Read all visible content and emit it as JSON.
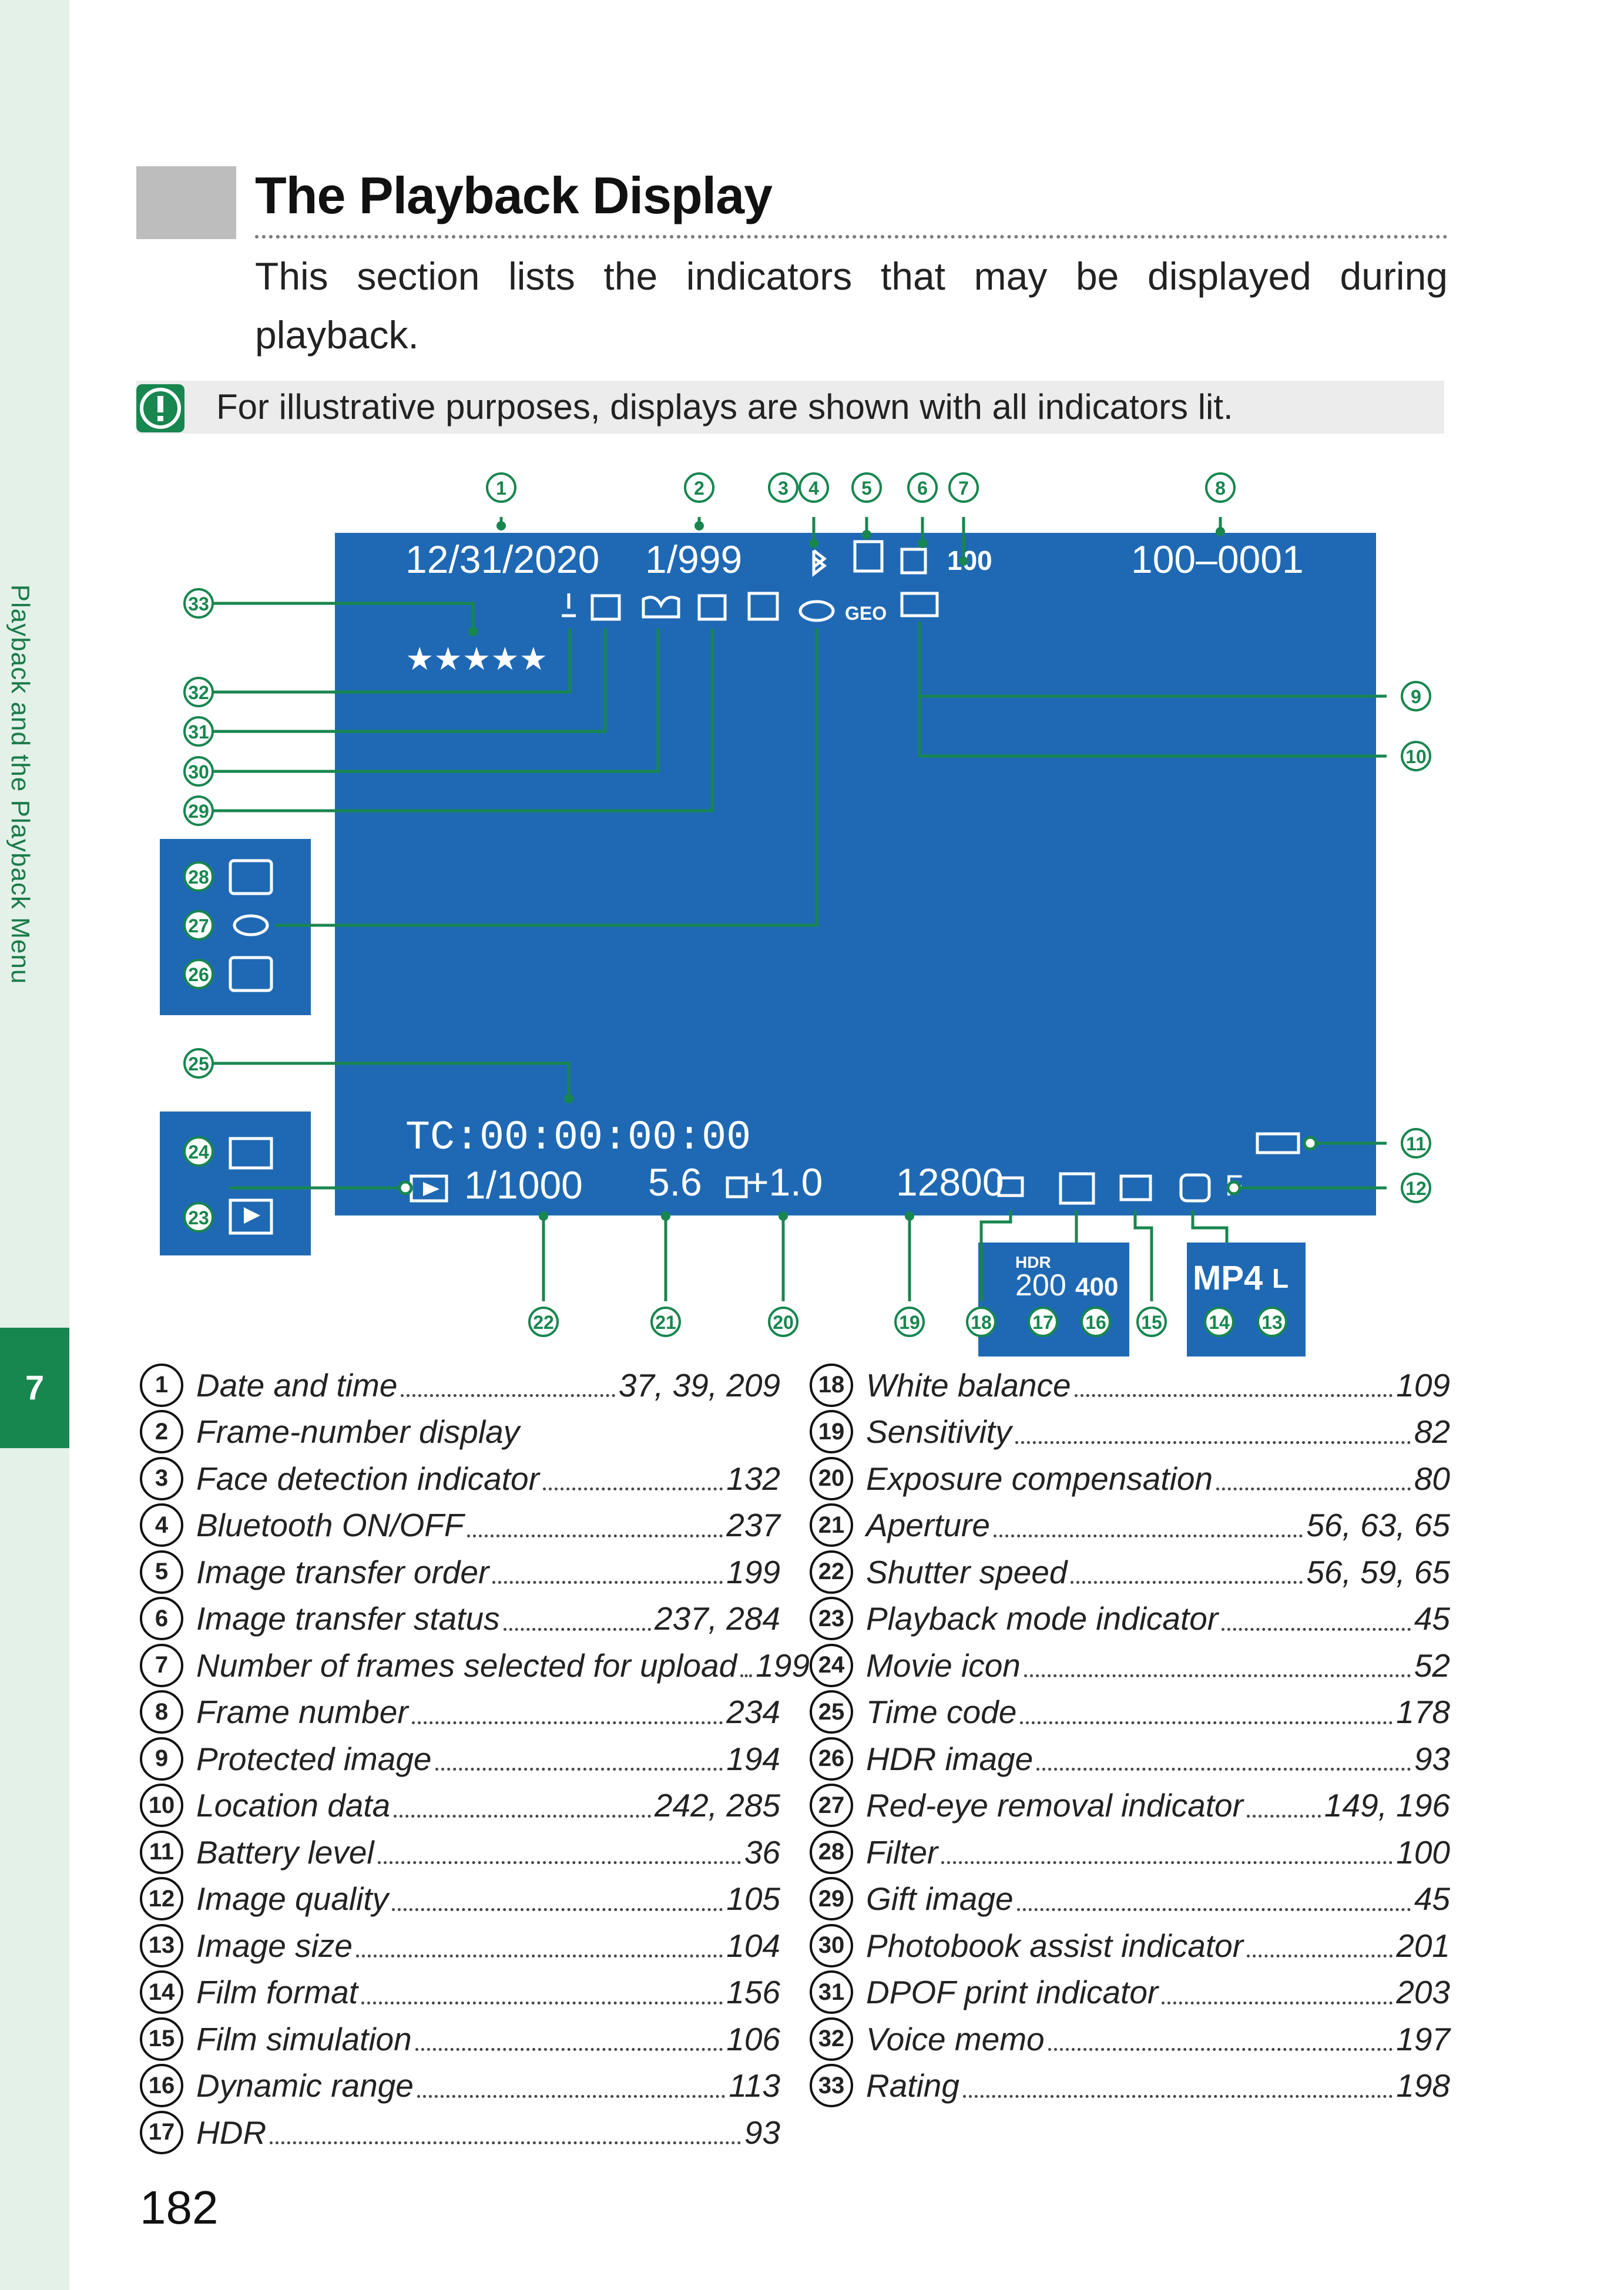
{
  "sidebar": {
    "section_title": "Playback and the Playback Menu",
    "chapter": "7"
  },
  "heading": "The Playback Display",
  "intro": "This section lists the indicators that may be displayed during playback.",
  "note": "For illustrative purposes, displays are shown with all indicators lit.",
  "colors": {
    "screen_blue": "#1f69b4",
    "callout_green": "#18864f",
    "sidebar_bg": "#e3f1e9"
  },
  "screen": {
    "date": "12/31/2020",
    "frame_count": "1/999",
    "upload_count": "100",
    "frame_number": "100–0001",
    "rating": "★★★★★",
    "geo": "GEO",
    "timecode": "TC:00:00:00:00",
    "shutter": "1/1000",
    "aperture": "5.6",
    "exposure": "+1.0",
    "iso": "12800",
    "quality": "F",
    "hdr_label": "HDR",
    "hdr_value": "200",
    "dr_value": "400",
    "format": "MP4",
    "size": "L"
  },
  "callouts": [
    "1",
    "2",
    "3",
    "4",
    "5",
    "6",
    "7",
    "8",
    "9",
    "10",
    "11",
    "12",
    "13",
    "14",
    "15",
    "16",
    "17",
    "18",
    "19",
    "20",
    "21",
    "22",
    "23",
    "24",
    "25",
    "26",
    "27",
    "28",
    "29",
    "30",
    "31",
    "32",
    "33"
  ],
  "list_left": [
    {
      "n": "1",
      "label": "Date and time",
      "page": "37, 39, 209"
    },
    {
      "n": "2",
      "label": "Frame-number display",
      "page": ""
    },
    {
      "n": "3",
      "label": "Face detection indicator",
      "page": "132"
    },
    {
      "n": "4",
      "label": "Bluetooth ON/OFF",
      "page": "237"
    },
    {
      "n": "5",
      "label": "Image transfer order",
      "page": "199"
    },
    {
      "n": "6",
      "label": "Image transfer status",
      "page": "237, 284"
    },
    {
      "n": "7",
      "label": "Number of frames selected for upload",
      "page": "199"
    },
    {
      "n": "8",
      "label": "Frame number",
      "page": "234"
    },
    {
      "n": "9",
      "label": "Protected image",
      "page": "194"
    },
    {
      "n": "10",
      "label": "Location data",
      "page": "242, 285"
    },
    {
      "n": "11",
      "label": "Battery level",
      "page": "36"
    },
    {
      "n": "12",
      "label": "Image quality",
      "page": "105"
    },
    {
      "n": "13",
      "label": "Image size",
      "page": "104"
    },
    {
      "n": "14",
      "label": "Film format",
      "page": "156"
    },
    {
      "n": "15",
      "label": "Film simulation",
      "page": "106"
    },
    {
      "n": "16",
      "label": "Dynamic range",
      "page": "113"
    },
    {
      "n": "17",
      "label": "HDR",
      "page": "93"
    }
  ],
  "list_right": [
    {
      "n": "18",
      "label": "White balance",
      "page": "109"
    },
    {
      "n": "19",
      "label": "Sensitivity",
      "page": "82"
    },
    {
      "n": "20",
      "label": "Exposure compensation",
      "page": "80"
    },
    {
      "n": "21",
      "label": "Aperture",
      "page": "56, 63, 65"
    },
    {
      "n": "22",
      "label": "Shutter speed",
      "page": "56, 59, 65"
    },
    {
      "n": "23",
      "label": "Playback mode indicator",
      "page": "45"
    },
    {
      "n": "24",
      "label": "Movie icon",
      "page": "52"
    },
    {
      "n": "25",
      "label": "Time code",
      "page": "178"
    },
    {
      "n": "26",
      "label": "HDR image",
      "page": "93"
    },
    {
      "n": "27",
      "label": "Red-eye removal indicator",
      "page": "149, 196"
    },
    {
      "n": "28",
      "label": "Filter",
      "page": "100"
    },
    {
      "n": "29",
      "label": "Gift image",
      "page": "45"
    },
    {
      "n": "30",
      "label": "Photobook assist indicator",
      "page": "201"
    },
    {
      "n": "31",
      "label": "DPOF print indicator",
      "page": "203"
    },
    {
      "n": "32",
      "label": "Voice memo",
      "page": "197"
    },
    {
      "n": "33",
      "label": "Rating",
      "page": "198"
    }
  ],
  "page_number": "182"
}
